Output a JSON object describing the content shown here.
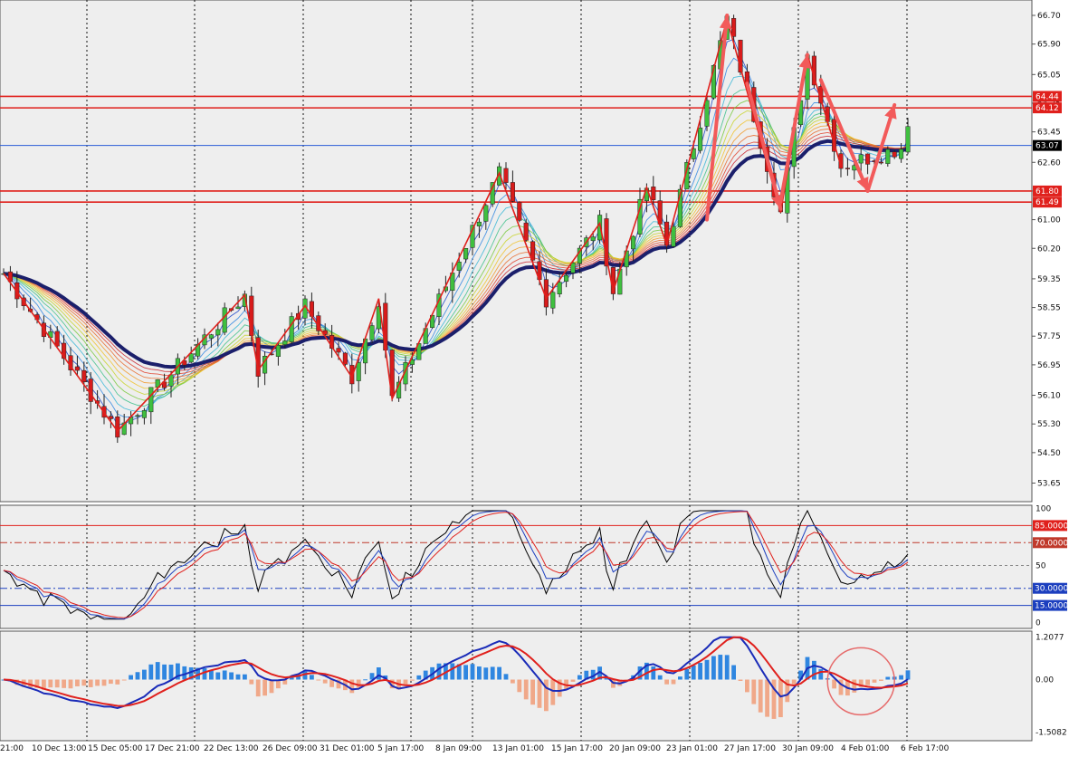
{
  "chart_data": [
    {
      "type": "candlestick",
      "panel": "price",
      "price_ticks": [
        "66.70",
        "65.90",
        "65.05",
        "64.25",
        "63.45",
        "62.60",
        "61.80",
        "61.00",
        "60.20",
        "59.35",
        "58.55",
        "57.75",
        "56.95",
        "56.10",
        "55.30",
        "54.50",
        "53.65"
      ],
      "x_ticks": [
        "21:00",
        "10 Dec 13:00",
        "15 Dec 05:00",
        "17 Dec 21:00",
        "22 Dec 13:00",
        "26 Dec 09:00",
        "31 Dec 01:00",
        "5 Jan 17:00",
        "8 Jan 09:00",
        "13 Jan 01:00",
        "15 Jan 17:00",
        "20 Jan 09:00",
        "23 Jan 01:00",
        "27 Jan 17:00",
        "30 Jan 09:00",
        "4 Feb 01:00",
        "6 Feb 17:00"
      ],
      "horizontal_levels": [
        {
          "label": "64.44",
          "value": 64.44,
          "color": "#e0201c"
        },
        {
          "label": "64.12",
          "value": 64.12,
          "color": "#e0201c"
        },
        {
          "label": "63.07",
          "value": 63.07,
          "color": "#2a5bd7",
          "current": true
        },
        {
          "label": "61.80",
          "value": 61.8,
          "color": "#e0201c"
        },
        {
          "label": "61.49",
          "value": 61.49,
          "color": "#e0201c"
        }
      ],
      "zigzag": [
        {
          "bar": 0,
          "price": 59.5
        },
        {
          "bar": 17,
          "price": 55.1
        },
        {
          "bar": 36,
          "price": 58.9
        },
        {
          "bar": 38,
          "price": 56.8
        },
        {
          "bar": 45,
          "price": 58.6
        },
        {
          "bar": 52,
          "price": 56.6
        },
        {
          "bar": 56,
          "price": 58.8
        },
        {
          "bar": 58,
          "price": 56.0
        },
        {
          "bar": 74,
          "price": 62.3
        },
        {
          "bar": 81,
          "price": 58.8
        },
        {
          "bar": 89,
          "price": 60.9
        },
        {
          "bar": 91,
          "price": 59.0
        },
        {
          "bar": 96,
          "price": 61.9
        },
        {
          "bar": 99,
          "price": 60.3
        },
        {
          "bar": 108,
          "price": 66.6
        },
        {
          "bar": 116,
          "price": 61.2
        },
        {
          "bar": 120,
          "price": 65.6
        },
        {
          "bar": 125,
          "price": 62.5
        }
      ],
      "arrows_forecast": [
        {
          "from_bar": 105,
          "from": 61.0,
          "to_bar": 108,
          "to": 66.7
        },
        {
          "from_bar": 111,
          "from": 64.8,
          "to_bar": 116,
          "to": 61.3
        },
        {
          "from_bar": 116,
          "from": 61.5,
          "to_bar": 120,
          "to": 65.6
        },
        {
          "from_bar": 122,
          "from": 64.9,
          "to_bar": 129,
          "to": 61.8
        },
        {
          "from_bar": 129,
          "from": 61.8,
          "to_bar": 133,
          "to": 64.2
        }
      ],
      "moving_average_band": "rainbow ribbon (red to blue) with thick navy base average",
      "last_price": 63.07
    },
    {
      "type": "line",
      "panel": "oscillator",
      "ticks": [
        "100",
        "85.0000",
        "70.0000",
        "50",
        "30.0000",
        "15.0000",
        "0"
      ],
      "levels": [
        {
          "label": "85.0000",
          "value": 85,
          "color": "#e0201c",
          "style": "solid"
        },
        {
          "label": "70.0000",
          "value": 70,
          "color": "#c0392b",
          "style": "dashdot"
        },
        {
          "label": "50",
          "value": 50,
          "color": "#888888",
          "style": "dashed"
        },
        {
          "label": "30.0000",
          "value": 30,
          "color": "#1c3fbf",
          "style": "dashdot"
        },
        {
          "label": "15.0000",
          "value": 15,
          "color": "#1c3fbf",
          "style": "solid"
        }
      ],
      "series_colors": [
        "#000000",
        "#1c3fbf",
        "#e0201c"
      ]
    },
    {
      "type": "bar",
      "panel": "macd",
      "ticks": [
        "1.2077",
        "0.00",
        "-1.5082"
      ],
      "ylim": [
        -1.5082,
        1.2077
      ],
      "positive_color": "#2f86e0",
      "negative_color": "#f0a889",
      "signal_colors": [
        "#1a2bb8",
        "#e0201c"
      ],
      "highlight_circle": {
        "bar": 128,
        "value": -0.05,
        "color": "#e66a6a"
      }
    }
  ]
}
